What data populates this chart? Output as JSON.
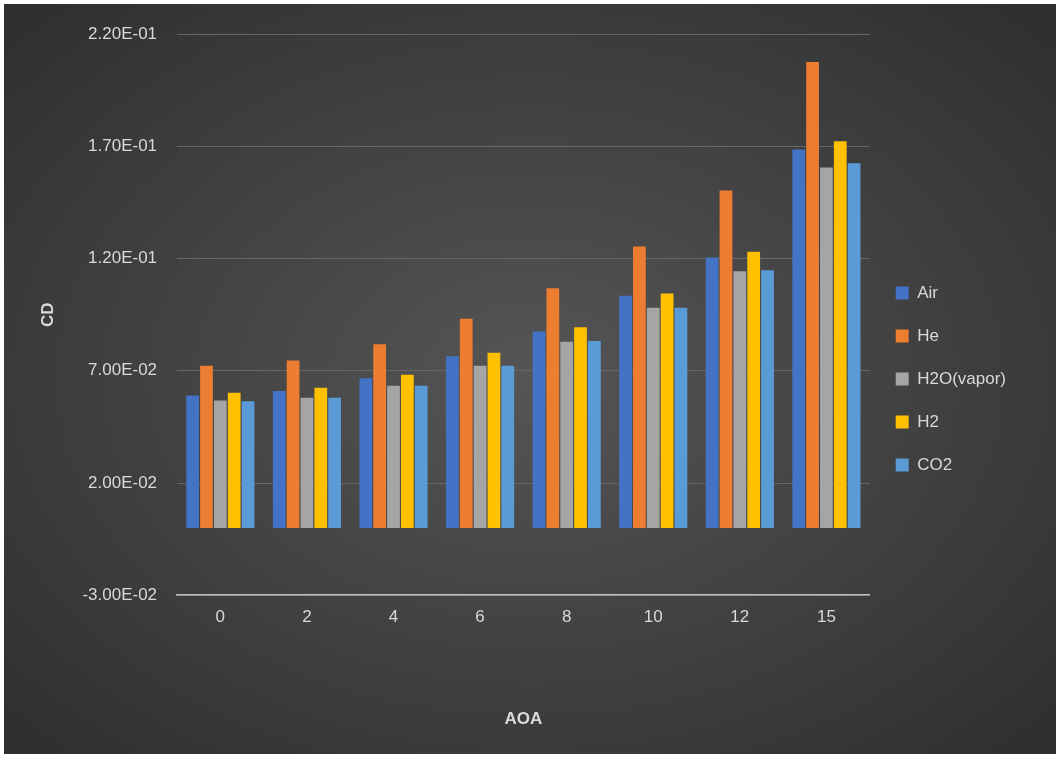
{
  "chart_data": {
    "type": "bar",
    "xlabel": "AOA",
    "ylabel": "CD",
    "categories": [
      "0",
      "2",
      "4",
      "6",
      "8",
      "10",
      "12",
      "15"
    ],
    "series": [
      {
        "name": "Air",
        "color": "#4472c4",
        "values": [
          0.059,
          0.061,
          0.0667,
          0.0765,
          0.0875,
          0.1034,
          0.1205,
          0.1686
        ]
      },
      {
        "name": "He",
        "color": "#ed7d31",
        "values": [
          0.0723,
          0.0746,
          0.0818,
          0.0932,
          0.1068,
          0.1254,
          0.1504,
          0.2076
        ]
      },
      {
        "name": "H2O(vapor)",
        "color": "#a5a5a5",
        "values": [
          0.0568,
          0.058,
          0.0633,
          0.0723,
          0.083,
          0.0981,
          0.1144,
          0.1606
        ]
      },
      {
        "name": "H2",
        "color": "#ffc000",
        "values": [
          0.0602,
          0.0625,
          0.0682,
          0.078,
          0.0894,
          0.1045,
          0.1231,
          0.1723
        ]
      },
      {
        "name": "CO2",
        "color": "#5b9bd5",
        "values": [
          0.0564,
          0.058,
          0.0633,
          0.0723,
          0.0833,
          0.0981,
          0.1148,
          0.1625
        ]
      }
    ],
    "ylim": [
      -0.03,
      0.22
    ],
    "yticks": [
      {
        "value": -0.03,
        "label": "-3.00E-02"
      },
      {
        "value": 0.02,
        "label": "2.00E-02"
      },
      {
        "value": 0.07,
        "label": "7.00E-02"
      },
      {
        "value": 0.12,
        "label": "1.20E-01"
      },
      {
        "value": 0.17,
        "label": "1.70E-01"
      },
      {
        "value": 0.22,
        "label": "2.20E-01"
      }
    ],
    "grid": "y",
    "legend": "right"
  }
}
